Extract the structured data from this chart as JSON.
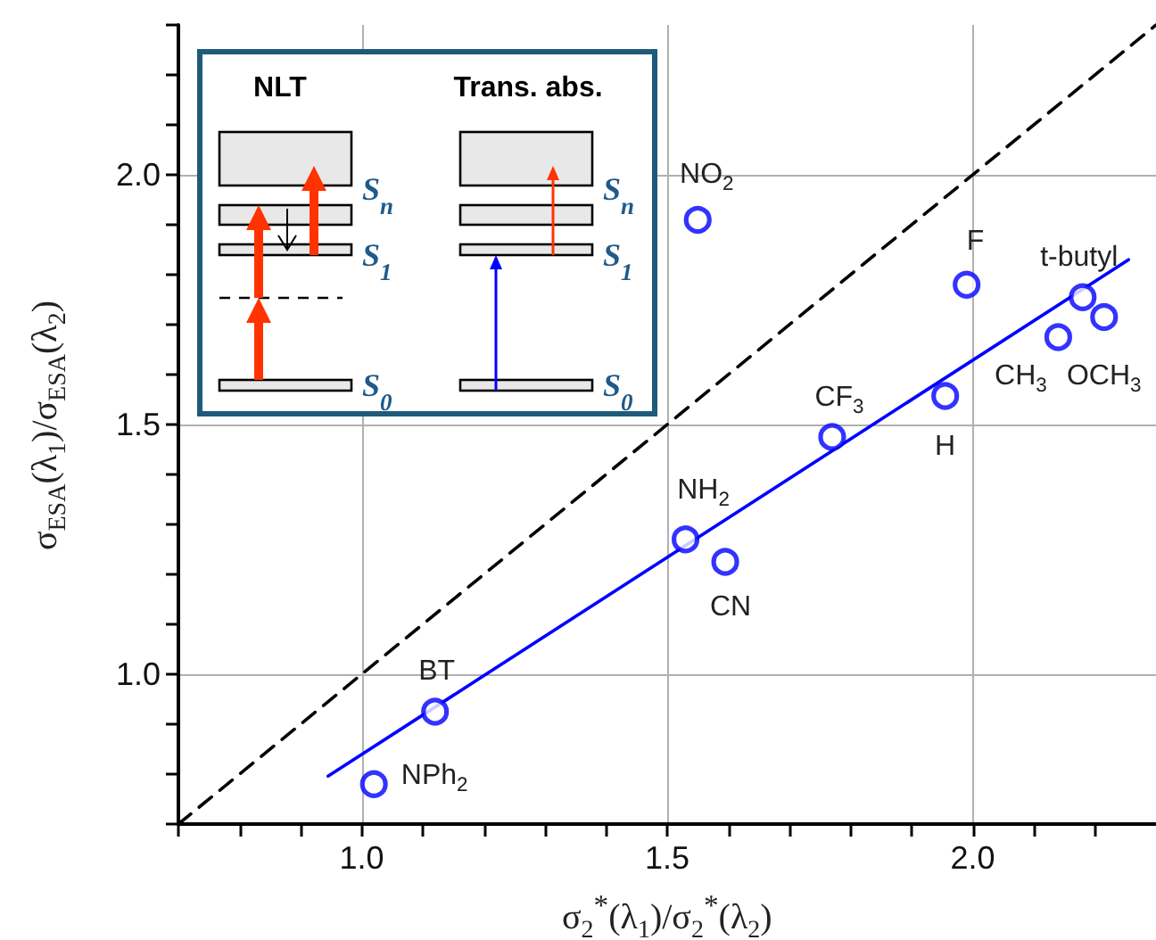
{
  "chart_data": {
    "type": "scatter",
    "xlabel": "σ$_{2}$$^{*}$(λ$_{1}$)/σ$_{2}$$^{*}$(λ$_{2}$)",
    "ylabel": "σ$_{ESA}$(λ$_{1}$)/σ$_{ESA}$(λ$_{2}$)",
    "xlim": [
      0.7,
      2.3
    ],
    "ylim": [
      0.7,
      2.3
    ],
    "xticks": [
      {
        "value": 0.7,
        "label": null
      },
      {
        "value": 0.8,
        "label": null
      },
      {
        "value": 0.9,
        "label": null
      },
      {
        "value": 1.0,
        "label": "1.0"
      },
      {
        "value": 1.1,
        "label": null
      },
      {
        "value": 1.2,
        "label": null
      },
      {
        "value": 1.3,
        "label": null
      },
      {
        "value": 1.4,
        "label": null
      },
      {
        "value": 1.5,
        "label": "1.5"
      },
      {
        "value": 1.6,
        "label": null
      },
      {
        "value": 1.7,
        "label": null
      },
      {
        "value": 1.8,
        "label": null
      },
      {
        "value": 1.9,
        "label": null
      },
      {
        "value": 2.0,
        "label": "2.0"
      },
      {
        "value": 2.1,
        "label": null
      },
      {
        "value": 2.2,
        "label": null
      }
    ],
    "yticks": [
      {
        "value": 0.7,
        "label": null
      },
      {
        "value": 0.8,
        "label": null
      },
      {
        "value": 0.9,
        "label": null
      },
      {
        "value": 1.0,
        "label": "1.0"
      },
      {
        "value": 1.1,
        "label": null
      },
      {
        "value": 1.2,
        "label": null
      },
      {
        "value": 1.3,
        "label": null
      },
      {
        "value": 1.4,
        "label": null
      },
      {
        "value": 1.5,
        "label": "1.5"
      },
      {
        "value": 1.6,
        "label": null
      },
      {
        "value": 1.7,
        "label": null
      },
      {
        "value": 1.8,
        "label": null
      },
      {
        "value": 1.9,
        "label": null
      },
      {
        "value": 2.0,
        "label": "2.0"
      },
      {
        "value": 2.1,
        "label": null
      },
      {
        "value": 2.2,
        "label": null
      },
      {
        "value": 2.3,
        "label": null
      }
    ],
    "grid": true,
    "marker": "circle",
    "series": [
      {
        "type": "line",
        "color": "#000000",
        "line_style": "dashed",
        "marker": "none",
        "x": [
          0.7,
          2.3
        ],
        "values": [
          0.7,
          2.3
        ]
      },
      {
        "type": "line",
        "color": "#0000ff",
        "line_style": "solid",
        "marker": "none",
        "x": [
          0.945,
          2.255
        ],
        "values": [
          0.796,
          1.83
        ]
      },
      {
        "color": "#0000ff",
        "x": [
          1.02,
          1.12,
          1.53,
          1.595,
          1.77,
          1.955,
          1.99,
          1.55,
          2.14,
          2.18,
          2.215
        ],
        "values": [
          0.78,
          0.925,
          1.27,
          1.225,
          1.475,
          1.557,
          1.78,
          1.91,
          1.675,
          1.755,
          1.715
        ]
      }
    ],
    "annotations": [
      {
        "text": "NPh$_{2}$",
        "x": 1.02,
        "y": 0.78
      },
      {
        "text": "BT",
        "x": 1.12,
        "y": 0.925
      },
      {
        "text": "NH$_{2}$",
        "x": 1.53,
        "y": 1.27
      },
      {
        "text": "CN",
        "x": 1.595,
        "y": 1.225
      },
      {
        "text": "CF$_{3}$",
        "x": 1.77,
        "y": 1.475
      },
      {
        "text": "H",
        "x": 1.955,
        "y": 1.557
      },
      {
        "text": "F",
        "x": 1.99,
        "y": 1.78
      },
      {
        "text": "NO$_{2}$",
        "x": 1.55,
        "y": 1.91
      },
      {
        "text": "CH$_{3}$",
        "x": 2.14,
        "y": 1.675
      },
      {
        "text": "t-butyl",
        "x": 2.18,
        "y": 1.755
      },
      {
        "text": "OCH$_{3}$",
        "x": 2.215,
        "y": 1.715
      },
      "NLT",
      "Trans. abs.",
      "S$_{n}$",
      "S$_{1}$",
      "S$_{0}$",
      "S$_{n}$",
      "S$_{1}$",
      "S$_{0}$"
    ]
  }
}
